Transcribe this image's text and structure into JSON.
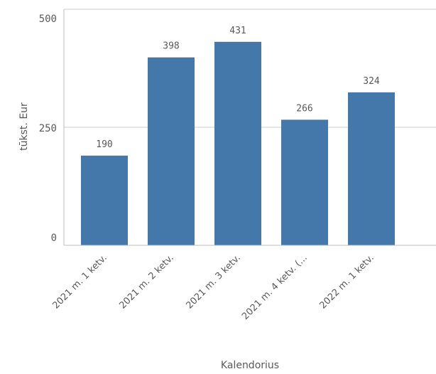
{
  "chart_data": {
    "type": "bar",
    "categories": [
      "2021 m. 1 ketv.",
      "2021 m. 2 ketv.",
      "2021 m. 3 ketv.",
      "2021 m. 4 ketv. (...",
      "2022 m. 1 ketv."
    ],
    "values": [
      190,
      398,
      431,
      266,
      324
    ],
    "xlabel": "Kalendorius",
    "ylabel": "tūkst. Eur",
    "ylim": [
      0,
      500
    ],
    "yticks": [
      0,
      250,
      500
    ],
    "grid": true,
    "bar_color": "#4477aa",
    "grid_color": "#cccccc",
    "axis_color": "#bfbfbf",
    "text_color": "#595959"
  }
}
